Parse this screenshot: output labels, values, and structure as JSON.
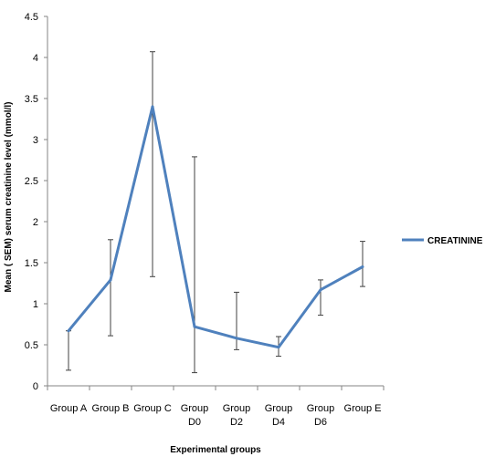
{
  "chart_data": {
    "type": "line",
    "title": "",
    "xlabel": "Experimental groups",
    "ylabel": "Mean (  SEM) serum creatinine level (mmol/l)",
    "ylim": [
      0,
      4.5
    ],
    "yticks": [
      "0",
      "0.5",
      "1",
      "1.5",
      "2",
      "2.5",
      "3",
      "3.5",
      "4",
      "4.5"
    ],
    "categories": [
      [
        "Group A"
      ],
      [
        "Group B"
      ],
      [
        "Group C"
      ],
      [
        "Group",
        "D0"
      ],
      [
        "Group",
        "D2"
      ],
      [
        "Group",
        "D4"
      ],
      [
        "Group",
        "D6"
      ],
      [
        "Group E"
      ]
    ],
    "series": [
      {
        "name": "CREATININE",
        "color": "#4f81bd",
        "values": [
          0.67,
          1.29,
          3.4,
          0.72,
          0.58,
          0.47,
          1.17,
          1.45
        ],
        "error_low": [
          0.19,
          0.61,
          1.33,
          0.16,
          0.44,
          0.36,
          0.86,
          1.21
        ],
        "error_high": [
          0.67,
          1.78,
          4.07,
          2.79,
          1.14,
          0.6,
          1.29,
          1.76
        ]
      }
    ],
    "grid": false,
    "legend_position": "right"
  }
}
